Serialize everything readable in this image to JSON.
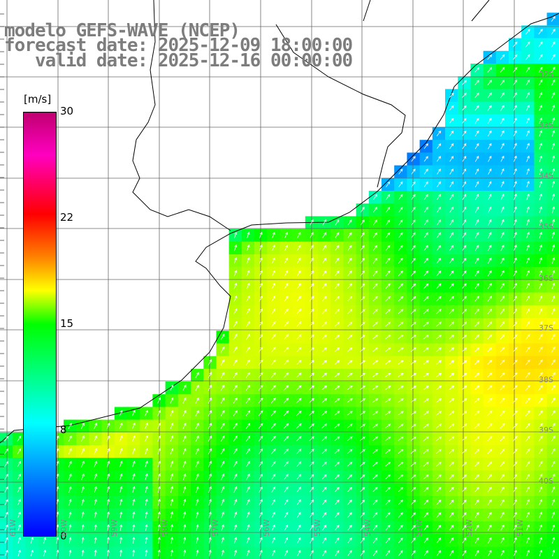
{
  "title": {
    "line1": "modelo GEFS-WAVE (NCEP)",
    "line2": "forecast date: 2025-12-09 18:00:00",
    "line3": "   valid date: 2025-12-16 00:00:00"
  },
  "colorbar": {
    "unit": "[m/s]",
    "ticks": [
      "30",
      "22",
      "15",
      "8",
      "0"
    ]
  },
  "lat_labels": [
    "32S",
    "33S",
    "34S",
    "35S",
    "36S",
    "37S",
    "38S",
    "39S",
    "40S"
  ],
  "lon_labels": [
    "61W",
    "60W",
    "59W",
    "58W",
    "57W",
    "56W",
    "55W",
    "54W",
    "53W",
    "52W",
    "51W"
  ],
  "colors": {
    "land": "#ffffff",
    "grid": "#666666",
    "coast": "#000000",
    "arrow": "#ffffff",
    "title": "#7d7d7d"
  }
}
